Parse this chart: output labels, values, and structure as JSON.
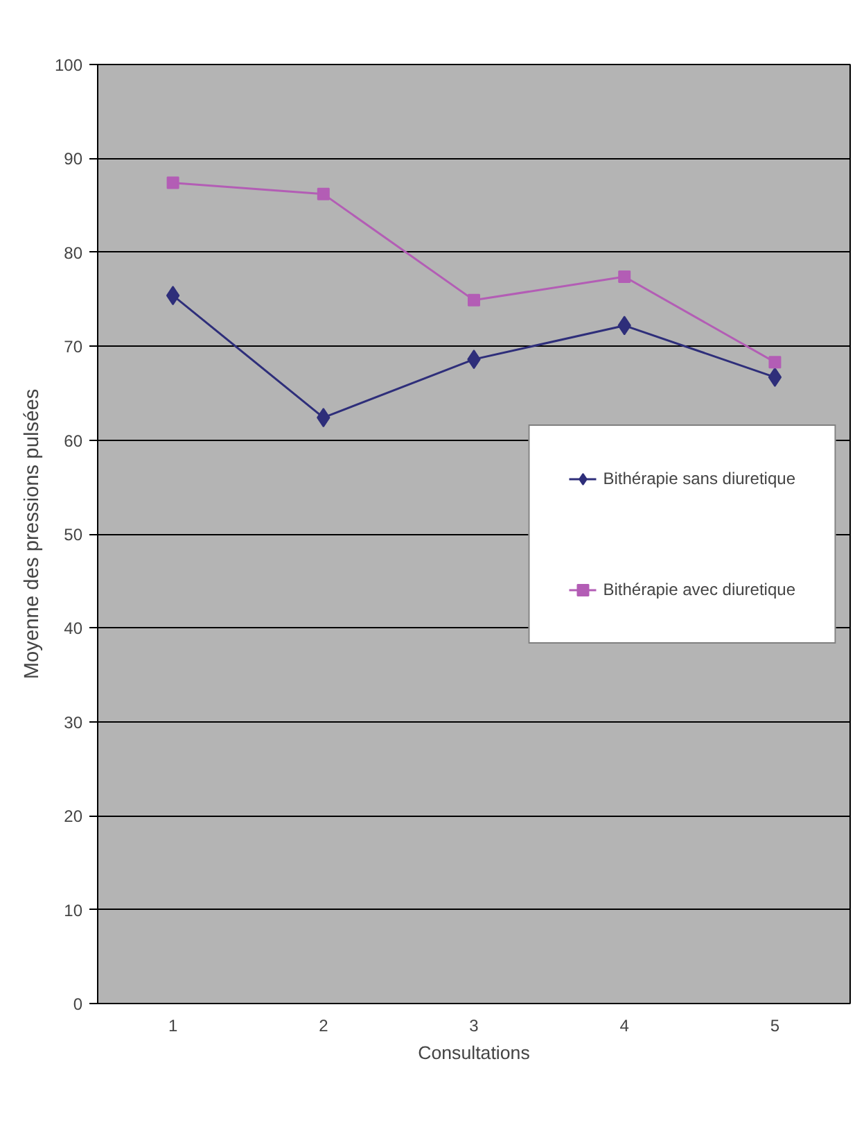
{
  "chart_data": {
    "type": "line",
    "xlabel": "Consultations",
    "ylabel": "Moyenne des pressions pulsées",
    "categories": [
      "1",
      "2",
      "3",
      "4",
      "5"
    ],
    "series": [
      {
        "name": "Bithérapie sans diuretique",
        "color": "#2e2e7a",
        "marker": "diamond",
        "values": [
          75.4,
          62.4,
          68.6,
          72.2,
          66.7
        ]
      },
      {
        "name": "Bithérapie avec diuretique",
        "color": "#b35db5",
        "marker": "square",
        "values": [
          87.4,
          86.2,
          74.9,
          77.4,
          68.3
        ]
      }
    ],
    "ylim": [
      0,
      100
    ],
    "yticks": [
      0,
      10,
      20,
      30,
      40,
      50,
      60,
      70,
      80,
      90,
      100
    ],
    "grid": "y",
    "legend": "right"
  }
}
